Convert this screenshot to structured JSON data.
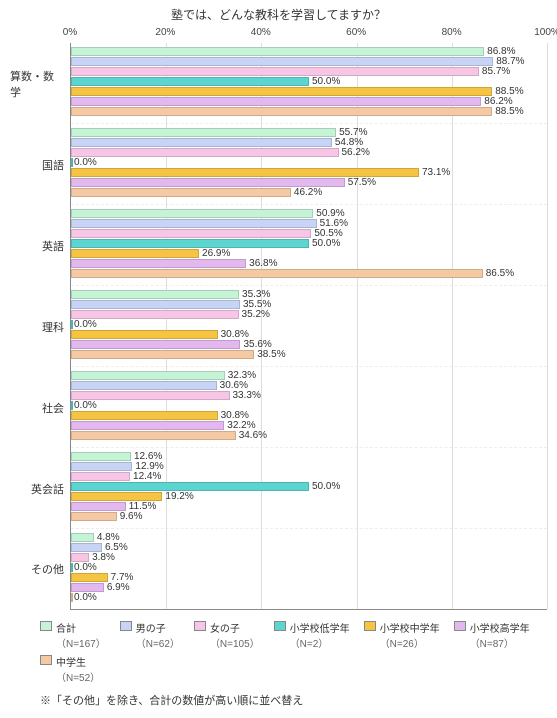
{
  "title": "塾では、どんな教科を学習してますか？",
  "note": "※「その他」を除き、合計の数値が高い順に並べ替え",
  "xaxis": {
    "min": 0,
    "max": 100,
    "step": 20,
    "suffix": "%",
    "grid_color": "#dddddd"
  },
  "series": [
    {
      "label": "合計",
      "n": "（N=167）",
      "color": "#c4f3d6"
    },
    {
      "label": "男の子",
      "n": "（N=62）",
      "color": "#c7d4f5"
    },
    {
      "label": "女の子",
      "n": "（N=105）",
      "color": "#f7c6e6"
    },
    {
      "label": "小学校低学年",
      "n": "（N=2）",
      "color": "#5cd4d0"
    },
    {
      "label": "小学校中学年",
      "n": "（N=26）",
      "color": "#f5c443"
    },
    {
      "label": "小学校高学年",
      "n": "（N=87）",
      "color": "#e3b8ef"
    },
    {
      "label": "中学生",
      "n": "（N=52）",
      "color": "#f5c9a3"
    }
  ],
  "categories": [
    {
      "label": "算数・数学",
      "values": [
        86.8,
        88.7,
        85.7,
        50.0,
        88.5,
        86.2,
        88.5
      ]
    },
    {
      "label": "国語",
      "values": [
        55.7,
        54.8,
        56.2,
        0.0,
        73.1,
        57.5,
        46.2
      ]
    },
    {
      "label": "英語",
      "values": [
        50.9,
        51.6,
        50.5,
        50.0,
        26.9,
        36.8,
        86.5
      ]
    },
    {
      "label": "理科",
      "values": [
        35.3,
        35.5,
        35.2,
        0.0,
        30.8,
        35.6,
        38.5
      ]
    },
    {
      "label": "社会",
      "values": [
        32.3,
        30.6,
        33.3,
        0.0,
        30.8,
        32.2,
        34.6
      ]
    },
    {
      "label": "英会話",
      "values": [
        12.6,
        12.9,
        12.4,
        50.0,
        19.2,
        11.5,
        9.6
      ]
    },
    {
      "label": "その他",
      "values": [
        4.8,
        6.5,
        3.8,
        0.0,
        7.7,
        6.9,
        0.0
      ]
    }
  ],
  "fontsizes": {
    "title": 12,
    "axis": 10,
    "value": 10,
    "legend": 10
  }
}
